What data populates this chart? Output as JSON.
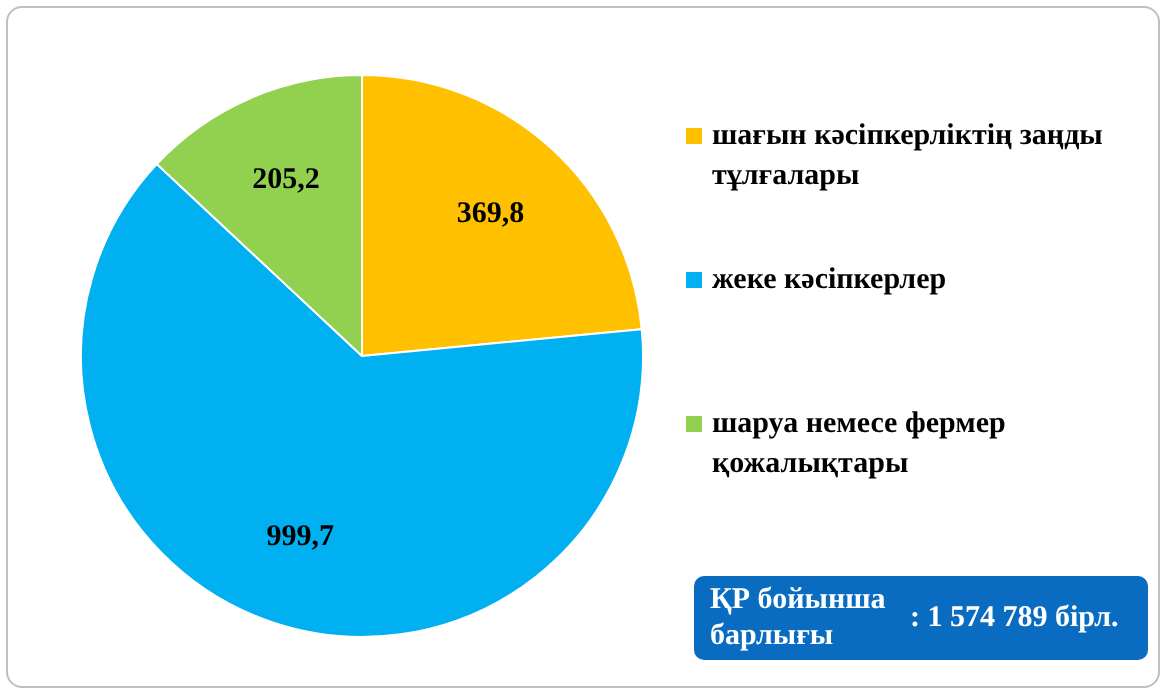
{
  "chart_data": {
    "type": "pie",
    "categories": [
      "шағын кәсіпкерліктің заңды тұлғалары",
      "жеке кәсіпкерлер",
      "шаруа немесе фермер қожалықтары"
    ],
    "values": [
      369.8,
      999.7,
      205.2
    ],
    "colors": [
      "#ffc000",
      "#00b0f0",
      "#92d050"
    ],
    "value_labels": [
      "369,8",
      "999,7",
      "205,2"
    ],
    "legend": "right",
    "annotations": [
      "ҚР бойынша барлығы",
      ": 1 574 789 бірл."
    ]
  }
}
